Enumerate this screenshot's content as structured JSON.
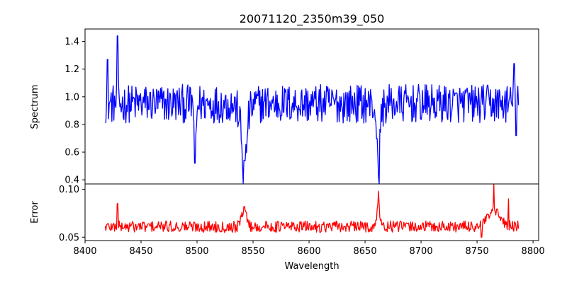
{
  "chart_data": [
    {
      "type": "line",
      "title": "20071120_2350m39_050",
      "xlabel": "",
      "ylabel": "Spectrum",
      "xlim": [
        8400,
        8805
      ],
      "ylim": [
        0.37,
        1.49
      ],
      "xticks": [
        "8400",
        "8450",
        "8500",
        "8550",
        "8600",
        "8650",
        "8700",
        "8750",
        "8800"
      ],
      "yticks": [
        "0.4",
        "0.6",
        "0.8",
        "1.0",
        "1.2",
        "1.4"
      ],
      "grid": false,
      "series": [
        {
          "color": "#0000ff",
          "x_start": 8418,
          "x_end": 8787,
          "features": [
            {
              "x": 8420,
              "y": 1.27
            },
            {
              "x": 8429,
              "y": 1.44
            },
            {
              "x": 8498,
              "y": 0.52
            },
            {
              "x": 8542,
              "y": 0.54
            },
            {
              "x": 8662,
              "y": 0.42
            },
            {
              "x": 8783,
              "y": 1.24
            },
            {
              "x": 8785,
              "y": 0.72
            }
          ]
        }
      ]
    },
    {
      "type": "line",
      "title": "",
      "xlabel": "Wavelength",
      "ylabel": "Error",
      "xlim": [
        8400,
        8805
      ],
      "ylim": [
        0.0465,
        0.1055
      ],
      "xticks": [
        "8400",
        "8450",
        "8500",
        "8550",
        "8600",
        "8650",
        "8700",
        "8750",
        "8800"
      ],
      "yticks": [
        "0.05",
        "0.10"
      ],
      "grid": false,
      "series": [
        {
          "color": "#ff0000",
          "x_start": 8418,
          "x_end": 8787,
          "features": [
            {
              "x": 8429,
              "y": 0.085
            },
            {
              "x": 8542,
              "y": 0.082
            },
            {
              "x": 8662,
              "y": 0.098
            },
            {
              "x": 8754,
              "y": 0.05
            },
            {
              "x": 8765,
              "y": 0.105
            },
            {
              "x": 8778,
              "y": 0.09
            }
          ]
        }
      ]
    }
  ]
}
